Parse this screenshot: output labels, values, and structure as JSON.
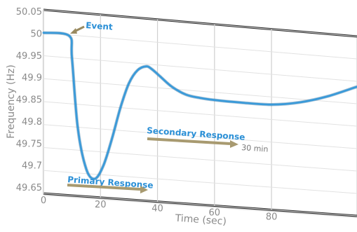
{
  "chart_data": {
    "type": "line",
    "xlabel": "Time (sec)",
    "ylabel": "Frequency (Hz)",
    "xlim": [
      0,
      110
    ],
    "ylim": [
      49.65,
      50.05
    ],
    "x_ticks": [
      "0",
      "20",
      "40",
      "60",
      "80"
    ],
    "y_ticks": [
      "50.05",
      "50",
      "49.95",
      "49.9",
      "49.85",
      "49.8",
      "49.75",
      "49.7",
      "49.65"
    ],
    "grid": true,
    "series": [
      {
        "color": "#3a9ad9",
        "x": [
          0,
          9,
          10,
          12,
          15,
          18,
          21,
          24,
          27,
          30,
          33,
          36,
          38,
          41,
          45,
          50,
          55,
          60,
          70,
          80,
          90,
          100,
          110
        ],
        "y": [
          50.0,
          49.998,
          49.95,
          49.8,
          49.71,
          49.69,
          49.72,
          49.78,
          49.85,
          49.905,
          49.935,
          49.945,
          49.94,
          49.925,
          49.905,
          49.89,
          49.885,
          49.883,
          49.882,
          49.883,
          49.893,
          49.912,
          49.938
        ]
      }
    ],
    "annotations": {
      "event": "Event",
      "secondary": "Secondary Response",
      "secondary_time": "30 min",
      "primary": "Primary Response"
    }
  }
}
